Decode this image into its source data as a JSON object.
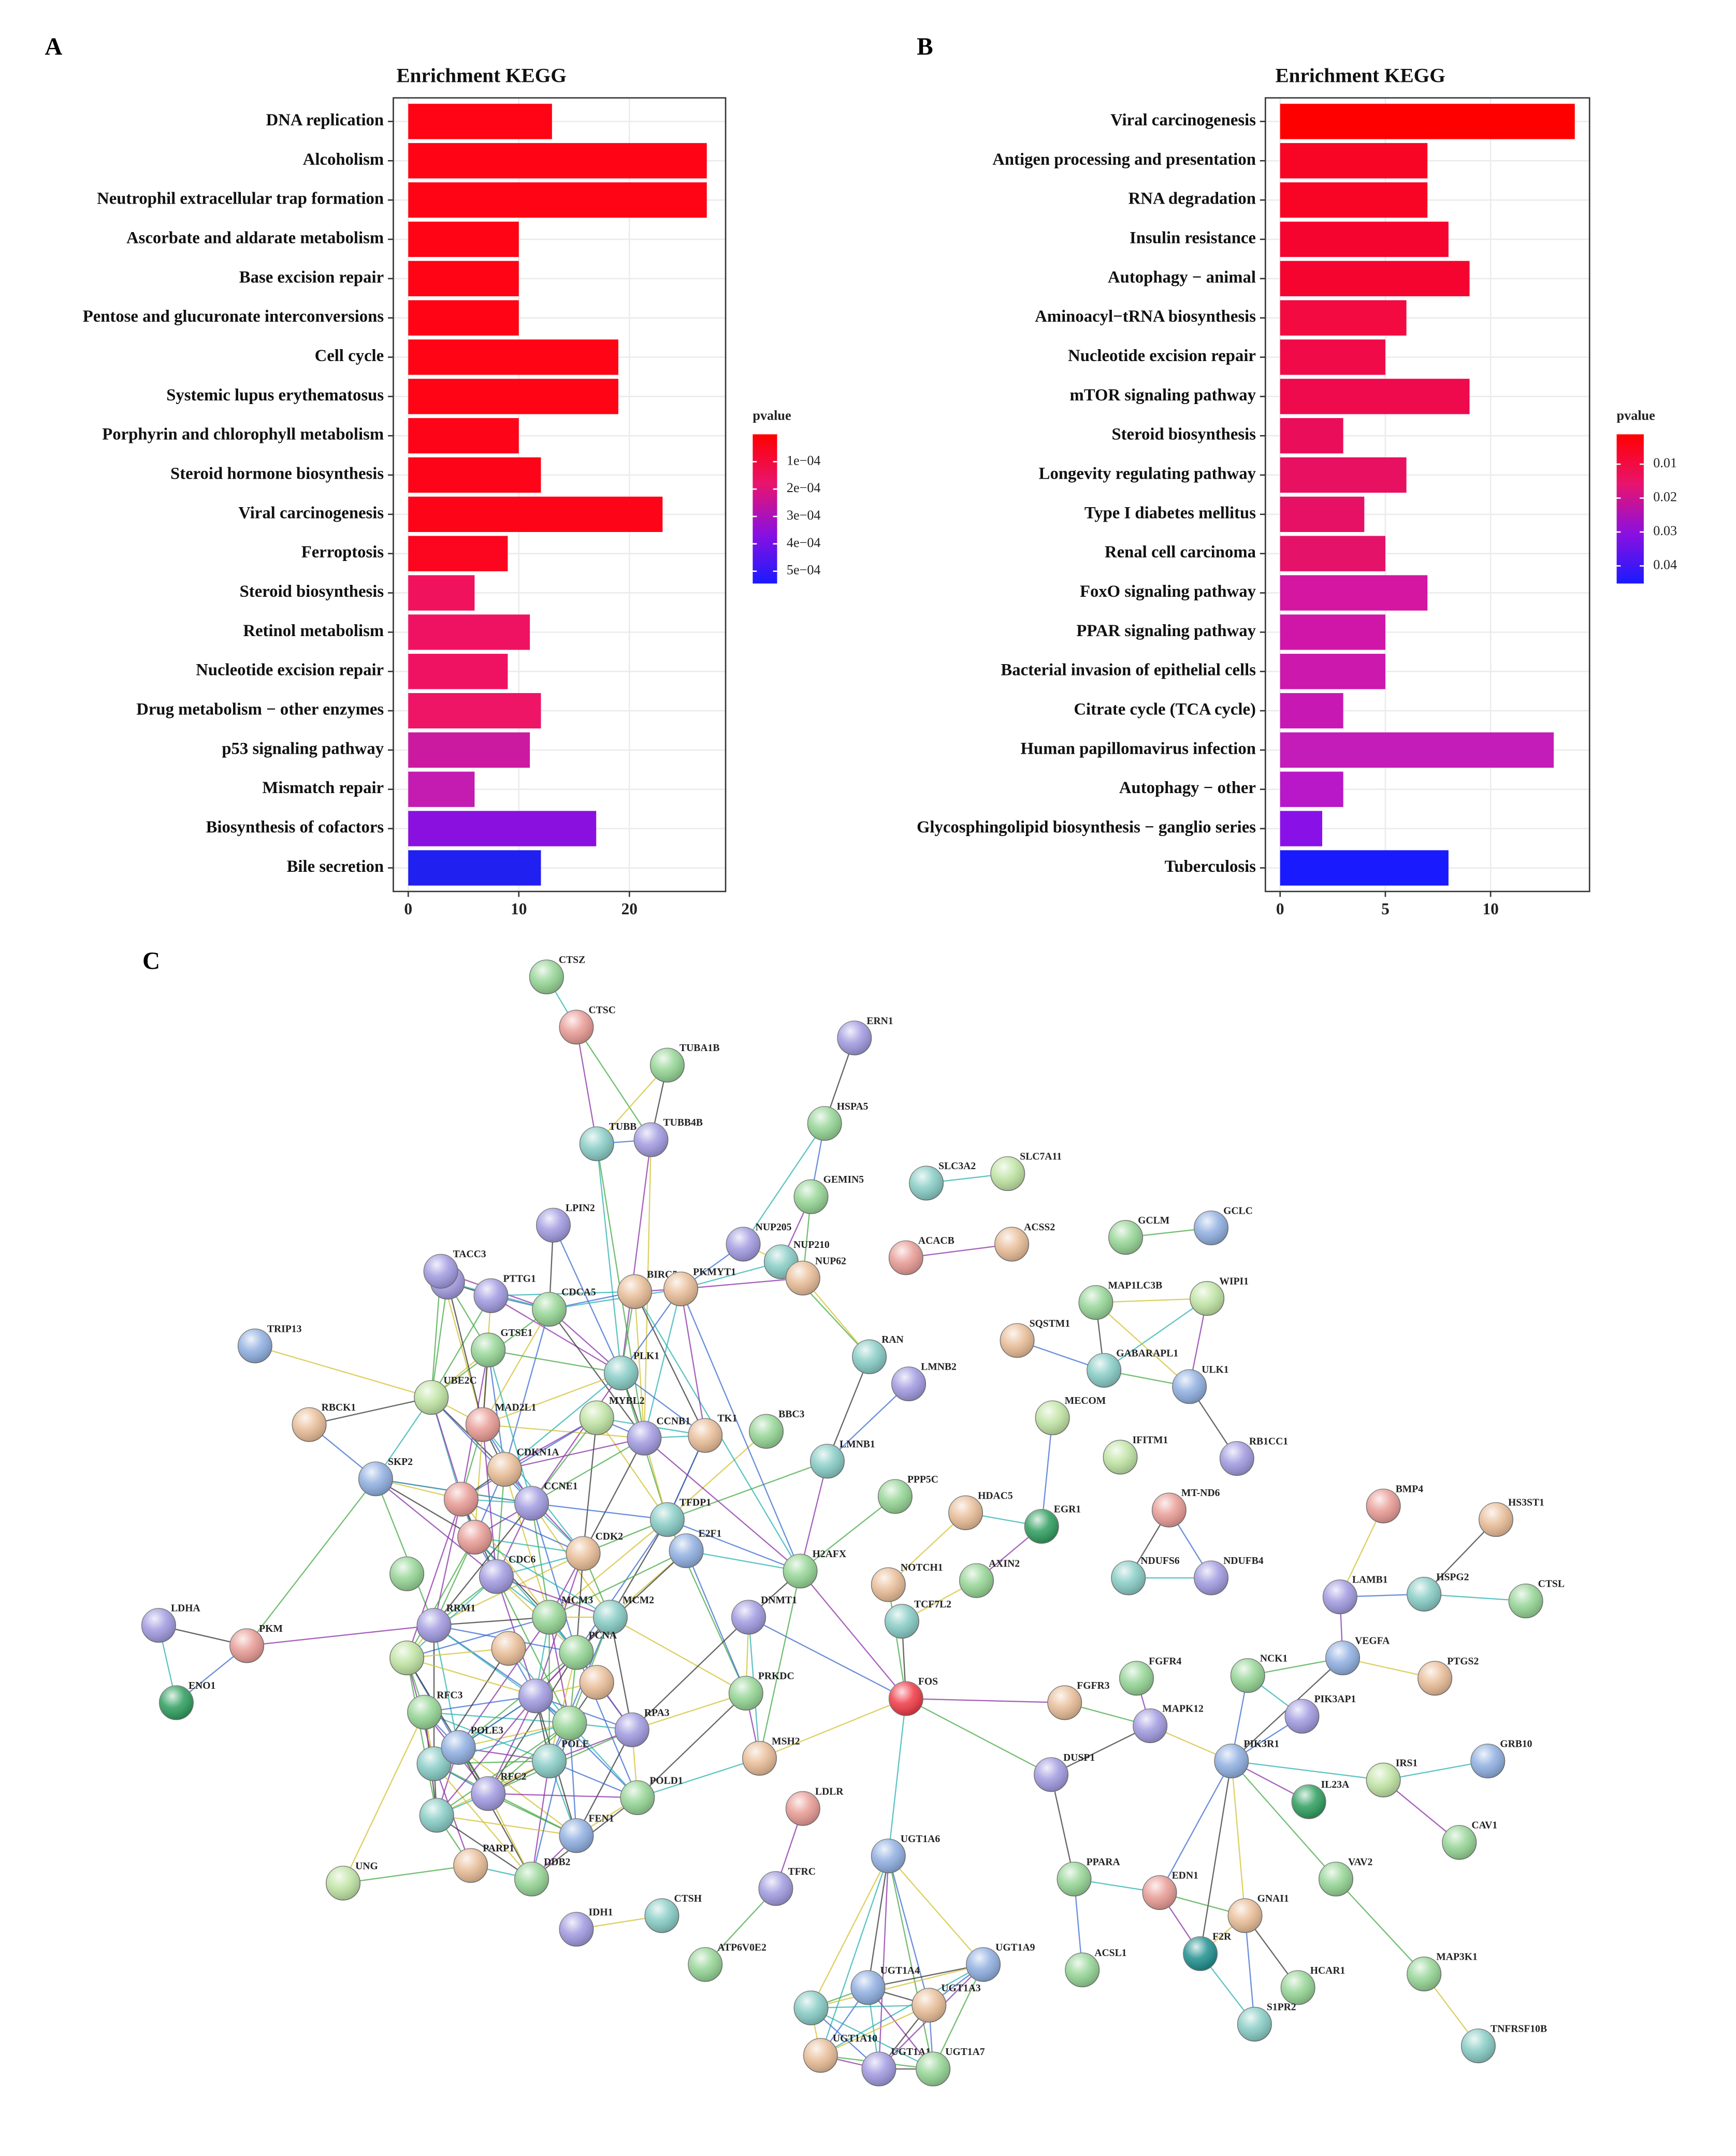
{
  "chart_data": [
    {
      "type": "bar",
      "orientation": "horizontal",
      "panel": "A",
      "title": "Enrichment KEGG",
      "categories": [
        "DNA replication",
        "Alcoholism",
        "Neutrophil extracellular trap formation",
        "Ascorbate and aldarate metabolism",
        "Base excision repair",
        "Pentose and glucuronate interconversions",
        "Cell cycle",
        "Systemic lupus erythematosus",
        "Porphyrin and chlorophyll metabolism",
        "Steroid hormone biosynthesis",
        "Viral carcinogenesis",
        "Ferroptosis",
        "Steroid biosynthesis",
        "Retinol metabolism",
        "Nucleotide excision repair",
        "Drug metabolism − other enzymes",
        "p53 signaling pathway",
        "Mismatch repair",
        "Biosynthesis of cofactors",
        "Bile secretion"
      ],
      "values": [
        13,
        27,
        27,
        10,
        10,
        10,
        19,
        19,
        10,
        12,
        23,
        9,
        6,
        11,
        9,
        12,
        11,
        6,
        17,
        12
      ],
      "colors": [
        "#fe0414",
        "#fe0414",
        "#fe0414",
        "#fe0414",
        "#fe0414",
        "#fe0414",
        "#fe0414",
        "#fe0414",
        "#fd0418",
        "#fd0418",
        "#fd0418",
        "#fb061e",
        "#f0125c",
        "#f01262",
        "#f01262",
        "#ee1466",
        "#cc1aa0",
        "#c41cb0",
        "#8a10e0",
        "#2020f0"
      ],
      "xlim": [
        -1.35,
        28.7
      ],
      "xticks": [
        0,
        10,
        20
      ],
      "grid": true,
      "colorbar": {
        "title": "pvalue",
        "lim": [
          0,
          0.000545
        ],
        "colors": [
          "#ff0000",
          "#e8146e",
          "#8a10e0",
          "#1a1aff"
        ],
        "ticks": [
          {
            "value": 0.0001,
            "label": "1e−04"
          },
          {
            "value": 0.0002,
            "label": "2e−04"
          },
          {
            "value": 0.0003,
            "label": "3e−04"
          },
          {
            "value": 0.0004,
            "label": "4e−04"
          },
          {
            "value": 0.0005,
            "label": "5e−04"
          }
        ]
      }
    },
    {
      "type": "bar",
      "orientation": "horizontal",
      "panel": "B",
      "title": "Enrichment KEGG",
      "categories": [
        "Viral carcinogenesis",
        "Antigen processing and presentation",
        "RNA degradation",
        "Insulin resistance",
        "Autophagy − animal",
        "Aminoacyl−tRNA biosynthesis",
        "Nucleotide excision repair",
        "mTOR signaling pathway",
        "Steroid biosynthesis",
        "Longevity regulating pathway",
        "Type I diabetes mellitus",
        "Renal cell carcinoma",
        "FoxO signaling pathway",
        "PPAR signaling pathway",
        "Bacterial invasion of epithelial cells",
        "Citrate cycle (TCA cycle)",
        "Human papillomavirus infection",
        "Autophagy − other",
        "Glycosphingolipid biosynthesis − ganglio series",
        "Tuberculosis"
      ],
      "values": [
        14,
        7,
        7,
        8,
        9,
        6,
        5,
        9,
        3,
        6,
        4,
        5,
        7,
        5,
        5,
        3,
        13,
        3,
        2,
        8
      ],
      "colors": [
        "#ff0000",
        "#f80424",
        "#f80424",
        "#f50430",
        "#f50430",
        "#f20a40",
        "#f00a48",
        "#ee0a4c",
        "#ea0e5a",
        "#e81060",
        "#e61064",
        "#e41268",
        "#d416a0",
        "#d016a8",
        "#cc18ac",
        "#c818b4",
        "#c41cb8",
        "#b818c8",
        "#8a10e8",
        "#1a1aff"
      ],
      "xlim": [
        -0.7,
        14.7
      ],
      "xticks": [
        0,
        5,
        10
      ],
      "grid": true,
      "colorbar": {
        "title": "pvalue",
        "lim": [
          0.0012,
          0.0452
        ],
        "colors": [
          "#ff0000",
          "#e8146e",
          "#8a10e0",
          "#1a1aff"
        ],
        "ticks": [
          0.01,
          0.02,
          0.03,
          0.04
        ]
      }
    }
  ],
  "network": {
    "panel": "C",
    "nodes": [
      "CTSZ",
      "CTSC",
      "TUBA1B",
      "TUBB",
      "TUBB4B",
      "ERN1",
      "HSPA5",
      "GEMIN5",
      "SLC3A2",
      "SLC7A11",
      "LPIN2",
      "NUP205",
      "NUP210",
      "NUP62",
      "ACACB",
      "ACSS2",
      "GCLM",
      "GCLC",
      "TACC3",
      "PTTG1",
      "CDCA5",
      "BIRC5",
      "PKMYT1",
      "MAP1LC3B",
      "WIPI1",
      "TRIP13",
      "GTSE1",
      "SQSTM1",
      "RAN",
      "PLK1",
      "GABARAPL1",
      "UBE2C",
      "MAD2L1",
      "MYBL2",
      "ULK1",
      "LMNB2",
      "RBCK1",
      "CCNB1",
      "TK1",
      "BBC3",
      "MECOM",
      "CDKN1A",
      "LMNB1",
      "IFITM1",
      "SKP2",
      "RB1CC1",
      "CCNE1",
      "PPP5C",
      "HDAC5",
      "MT-ND6",
      "BMP4",
      "HS3ST1",
      "TFDP1",
      "EGR1",
      "CDK2",
      "E2F1",
      "CDC6",
      "H2AFX",
      "NDUFS6",
      "NDUFB4",
      "NOTCH1",
      "AXIN2",
      "LAMB1",
      "HSPG2",
      "CTSL",
      "LDHA",
      "MCM3",
      "MCM2",
      "DNMT1",
      "TCF7L2",
      "RRM1",
      "PKM",
      "PCNA",
      "NCK1",
      "VEGFA",
      "PTGS2",
      "FGFR4",
      "ENO1",
      "FOS",
      "FGFR3",
      "PRKDC",
      "RFC3",
      "MAPK12",
      "PIK3AP1",
      "RPA3",
      "POLE3",
      "POLE",
      "MSH2",
      "PIK3R1",
      "GRB10",
      "DUSP1",
      "IRS1",
      "RFC2",
      "POLD1",
      "IL23A",
      "LDLR",
      "FEN1",
      "CAV1",
      "PARP1",
      "DDB2",
      "UGT1A6",
      "UNG",
      "PPARA",
      "EDN1",
      "VAV2",
      "TFRC",
      "GNAI1",
      "IDH1",
      "CTSH",
      "F2R",
      "UGT1A9",
      "ACSL1",
      "ATP6V0E2",
      "MAP3K1",
      "HCAR1",
      "UGT1A4",
      "UGT1A3",
      "S1PR2",
      "TNFRSF10B",
      "UGT1A10",
      "UGT1A1",
      "UGT1A7"
    ]
  }
}
